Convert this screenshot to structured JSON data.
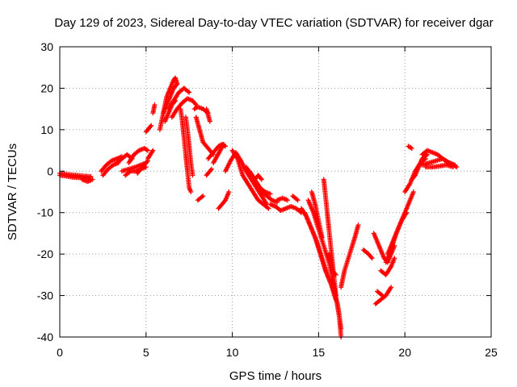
{
  "chart_data": {
    "type": "scatter",
    "title": "Day 129 of 2023, Sidereal Day-to-day VTEC variation (SDTVAR) for receiver dgar",
    "xlabel": "GPS time / hours",
    "ylabel": "SDTVAR / TECUs",
    "xlim": [
      0,
      25
    ],
    "ylim": [
      -40,
      30
    ],
    "xticks": [
      0,
      5,
      10,
      15,
      20,
      25
    ],
    "yticks": [
      30,
      20,
      10,
      0,
      -10,
      -20,
      -30,
      -40
    ],
    "grid": true,
    "marker": "+",
    "color": "#ff0000",
    "tracks": [
      [
        [
          0.0,
          -1
        ],
        [
          0.4,
          -1.2
        ],
        [
          0.8,
          -1.5
        ],
        [
          1.2,
          -1.6
        ],
        [
          1.6,
          -1.8
        ],
        [
          1.9,
          -2
        ]
      ],
      [
        [
          0.0,
          -0.5
        ],
        [
          0.5,
          -0.8
        ],
        [
          1.0,
          -1.0
        ],
        [
          1.4,
          -1.2
        ],
        [
          1.8,
          -1.3
        ]
      ],
      [
        [
          1.3,
          -2
        ],
        [
          1.6,
          -2.5
        ],
        [
          1.8,
          -2.2
        ]
      ],
      [
        [
          2.4,
          0
        ],
        [
          2.7,
          1.5
        ],
        [
          3.0,
          2.5
        ],
        [
          3.3,
          3
        ],
        [
          3.6,
          3.5
        ]
      ],
      [
        [
          2.5,
          -1
        ],
        [
          2.8,
          0.5
        ],
        [
          3.1,
          1.5
        ],
        [
          3.4,
          2
        ]
      ],
      [
        [
          3.3,
          2
        ],
        [
          3.6,
          3
        ],
        [
          3.9,
          4
        ],
        [
          4.2,
          3
        ]
      ],
      [
        [
          3.6,
          0
        ],
        [
          4.0,
          0.5
        ],
        [
          4.4,
          1
        ],
        [
          4.7,
          1.5
        ],
        [
          5.0,
          2
        ]
      ],
      [
        [
          3.8,
          -1
        ],
        [
          4.1,
          0
        ],
        [
          4.4,
          0
        ],
        [
          4.7,
          0.5
        ],
        [
          5.0,
          1
        ]
      ],
      [
        [
          4.0,
          2
        ],
        [
          4.3,
          4
        ],
        [
          4.6,
          5
        ],
        [
          4.9,
          5.5
        ],
        [
          5.1,
          5
        ]
      ],
      [
        [
          4.5,
          -0.5
        ],
        [
          4.8,
          1
        ],
        [
          5.1,
          2.5
        ]
      ],
      [
        [
          5.1,
          3
        ],
        [
          5.4,
          5
        ]
      ],
      [
        [
          5.0,
          9.5
        ],
        [
          5.3,
          11
        ]
      ],
      [
        [
          5.4,
          14
        ],
        [
          5.5,
          16
        ]
      ],
      [
        [
          5.8,
          10
        ],
        [
          6.0,
          14
        ],
        [
          6.2,
          18
        ],
        [
          6.4,
          20
        ],
        [
          6.6,
          22
        ],
        [
          6.7,
          22.5
        ],
        [
          6.8,
          21
        ]
      ],
      [
        [
          6.0,
          14
        ],
        [
          6.2,
          16
        ],
        [
          6.4,
          18
        ],
        [
          6.6,
          20
        ],
        [
          6.8,
          21
        ]
      ],
      [
        [
          6.1,
          12
        ],
        [
          6.3,
          14
        ],
        [
          6.5,
          16
        ],
        [
          6.7,
          17
        ]
      ],
      [
        [
          6.3,
          15
        ],
        [
          6.6,
          17
        ],
        [
          6.9,
          19
        ],
        [
          7.2,
          20
        ],
        [
          7.5,
          19
        ]
      ],
      [
        [
          6.5,
          13
        ],
        [
          6.8,
          15
        ],
        [
          7.1,
          16.5
        ],
        [
          7.4,
          17.5
        ],
        [
          7.7,
          17
        ],
        [
          7.9,
          16
        ]
      ],
      [
        [
          7.0,
          15
        ],
        [
          7.1,
          12
        ],
        [
          7.2,
          8
        ],
        [
          7.3,
          4
        ],
        [
          7.4,
          0
        ],
        [
          7.5,
          -4
        ],
        [
          7.6,
          -5
        ]
      ],
      [
        [
          7.3,
          13
        ],
        [
          7.4,
          10
        ],
        [
          7.5,
          6
        ],
        [
          7.6,
          2
        ],
        [
          7.7,
          -1
        ]
      ],
      [
        [
          7.8,
          15
        ],
        [
          8.0,
          15.5
        ],
        [
          8.3,
          15
        ],
        [
          8.6,
          14
        ]
      ],
      [
        [
          7.9,
          13
        ],
        [
          8.1,
          10
        ],
        [
          8.3,
          7
        ],
        [
          8.5,
          6
        ],
        [
          8.7,
          5
        ],
        [
          8.9,
          4
        ]
      ],
      [
        [
          8.6,
          3
        ],
        [
          8.8,
          4
        ],
        [
          9.0,
          5
        ],
        [
          9.2,
          6
        ],
        [
          9.4,
          6.5
        ],
        [
          9.6,
          6
        ]
      ],
      [
        [
          8.9,
          2
        ],
        [
          9.1,
          3.5
        ],
        [
          9.3,
          5
        ],
        [
          9.5,
          6.5
        ]
      ],
      [
        [
          8.0,
          -7
        ],
        [
          8.3,
          -6
        ]
      ],
      [
        [
          8.5,
          -1
        ],
        [
          8.8,
          0.5
        ]
      ],
      [
        [
          9.2,
          -9
        ],
        [
          9.4,
          -8
        ],
        [
          9.6,
          -7
        ],
        [
          9.8,
          -5
        ]
      ],
      [
        [
          8.5,
          15
        ],
        [
          8.7,
          12
        ]
      ],
      [
        [
          9.6,
          0
        ],
        [
          9.9,
          2.5
        ],
        [
          10.2,
          4.5
        ],
        [
          10.5,
          2.5
        ],
        [
          10.8,
          0
        ],
        [
          11.1,
          -2
        ],
        [
          11.4,
          -4
        ],
        [
          11.7,
          -6
        ],
        [
          12.0,
          -8
        ]
      ],
      [
        [
          10.0,
          5
        ],
        [
          10.3,
          3
        ],
        [
          10.6,
          -1
        ],
        [
          10.9,
          -3
        ],
        [
          11.2,
          -5
        ],
        [
          11.5,
          -7
        ],
        [
          11.8,
          -8
        ],
        [
          12.1,
          -9
        ]
      ],
      [
        [
          10.8,
          1
        ],
        [
          11.1,
          -1
        ],
        [
          11.4,
          -3.5
        ],
        [
          11.7,
          -5
        ],
        [
          12.0,
          -6
        ],
        [
          12.3,
          -7
        ],
        [
          12.6,
          -7.5
        ]
      ],
      [
        [
          11.0,
          0
        ],
        [
          11.3,
          -2
        ],
        [
          11.6,
          -4
        ],
        [
          11.9,
          -5
        ],
        [
          12.2,
          -5.5
        ]
      ],
      [
        [
          11.3,
          -2
        ],
        [
          11.5,
          -1
        ],
        [
          11.7,
          -2
        ]
      ],
      [
        [
          12.2,
          -8
        ],
        [
          12.5,
          -8.5
        ],
        [
          12.8,
          -9.5
        ],
        [
          13.1,
          -9
        ],
        [
          13.4,
          -8.5
        ],
        [
          13.7,
          -9
        ],
        [
          14.0,
          -10
        ]
      ],
      [
        [
          12.6,
          -7
        ],
        [
          12.9,
          -6.5
        ],
        [
          13.2,
          -7
        ]
      ],
      [
        [
          13.5,
          -6
        ],
        [
          13.8,
          -7
        ]
      ],
      [
        [
          14.0,
          -9
        ],
        [
          14.3,
          -11
        ],
        [
          14.6,
          -14
        ],
        [
          14.9,
          -17
        ],
        [
          15.2,
          -21
        ],
        [
          15.5,
          -25
        ],
        [
          15.8,
          -28
        ],
        [
          16.1,
          -32
        ],
        [
          16.3,
          -38
        ]
      ],
      [
        [
          14.2,
          -10
        ],
        [
          14.5,
          -13
        ],
        [
          14.8,
          -16
        ],
        [
          15.1,
          -20
        ],
        [
          15.4,
          -24
        ],
        [
          15.7,
          -27
        ],
        [
          16.0,
          -31
        ]
      ],
      [
        [
          14.4,
          -7
        ],
        [
          14.7,
          -10
        ],
        [
          15.0,
          -14
        ],
        [
          15.3,
          -18
        ],
        [
          15.6,
          -22
        ],
        [
          15.9,
          -28
        ],
        [
          16.2,
          -35
        ],
        [
          16.3,
          -40
        ]
      ],
      [
        [
          14.6,
          -5
        ],
        [
          14.8,
          -8
        ],
        [
          15.0,
          -12
        ],
        [
          15.2,
          -16
        ]
      ],
      [
        [
          15.3,
          -2
        ],
        [
          15.4,
          -6
        ],
        [
          15.5,
          -10
        ],
        [
          15.6,
          -14
        ],
        [
          15.7,
          -18
        ],
        [
          15.8,
          -22
        ],
        [
          15.9,
          -26
        ],
        [
          16.0,
          -30
        ]
      ],
      [
        [
          15.6,
          -20
        ],
        [
          15.8,
          -24
        ],
        [
          16.0,
          -25
        ]
      ],
      [
        [
          16.3,
          -28
        ],
        [
          16.5,
          -24
        ],
        [
          16.8,
          -20
        ],
        [
          17.1,
          -16
        ],
        [
          17.3,
          -13
        ]
      ],
      [
        [
          17.6,
          -19
        ],
        [
          17.9,
          -20
        ],
        [
          18.1,
          -21
        ]
      ],
      [
        [
          18.2,
          -15
        ],
        [
          18.4,
          -17
        ],
        [
          18.6,
          -19
        ],
        [
          18.8,
          -21
        ],
        [
          19.0,
          -22
        ],
        [
          19.2,
          -20
        ],
        [
          19.4,
          -18
        ]
      ],
      [
        [
          18.3,
          -32
        ],
        [
          18.6,
          -31
        ],
        [
          18.9,
          -30
        ],
        [
          19.2,
          -28
        ]
      ],
      [
        [
          18.6,
          -24
        ],
        [
          18.9,
          -25
        ],
        [
          19.2,
          -23
        ],
        [
          19.4,
          -21
        ]
      ],
      [
        [
          18.4,
          -29
        ],
        [
          18.7,
          -30
        ]
      ],
      [
        [
          19.0,
          -20
        ],
        [
          19.3,
          -17
        ],
        [
          19.6,
          -14
        ],
        [
          19.9,
          -11
        ],
        [
          20.2,
          -8
        ],
        [
          20.5,
          -5
        ]
      ],
      [
        [
          18.9,
          -22
        ],
        [
          19.2,
          -19
        ],
        [
          19.5,
          -15
        ],
        [
          19.8,
          -12
        ],
        [
          20.1,
          -10
        ]
      ],
      [
        [
          20.0,
          -5
        ],
        [
          20.3,
          -3
        ],
        [
          20.6,
          0
        ],
        [
          20.9,
          2
        ],
        [
          21.2,
          3
        ]
      ],
      [
        [
          20.4,
          -2
        ],
        [
          20.6,
          -1
        ],
        [
          20.8,
          1
        ],
        [
          21.0,
          3
        ],
        [
          21.3,
          4
        ]
      ],
      [
        [
          20.2,
          6
        ],
        [
          20.4,
          5.5
        ]
      ],
      [
        [
          21.0,
          4
        ],
        [
          21.3,
          5
        ],
        [
          21.6,
          4.5
        ],
        [
          21.9,
          4
        ],
        [
          22.2,
          3
        ],
        [
          22.5,
          2
        ],
        [
          22.8,
          1.5
        ],
        [
          23.0,
          1
        ]
      ],
      [
        [
          21.0,
          1.5
        ],
        [
          21.4,
          2
        ],
        [
          21.8,
          2.5
        ],
        [
          22.2,
          3
        ],
        [
          22.6,
          2
        ],
        [
          22.9,
          1.5
        ]
      ],
      [
        [
          21.2,
          1
        ],
        [
          21.6,
          1
        ],
        [
          22.0,
          1.2
        ],
        [
          22.4,
          1.5
        ],
        [
          22.8,
          1
        ]
      ]
    ]
  }
}
